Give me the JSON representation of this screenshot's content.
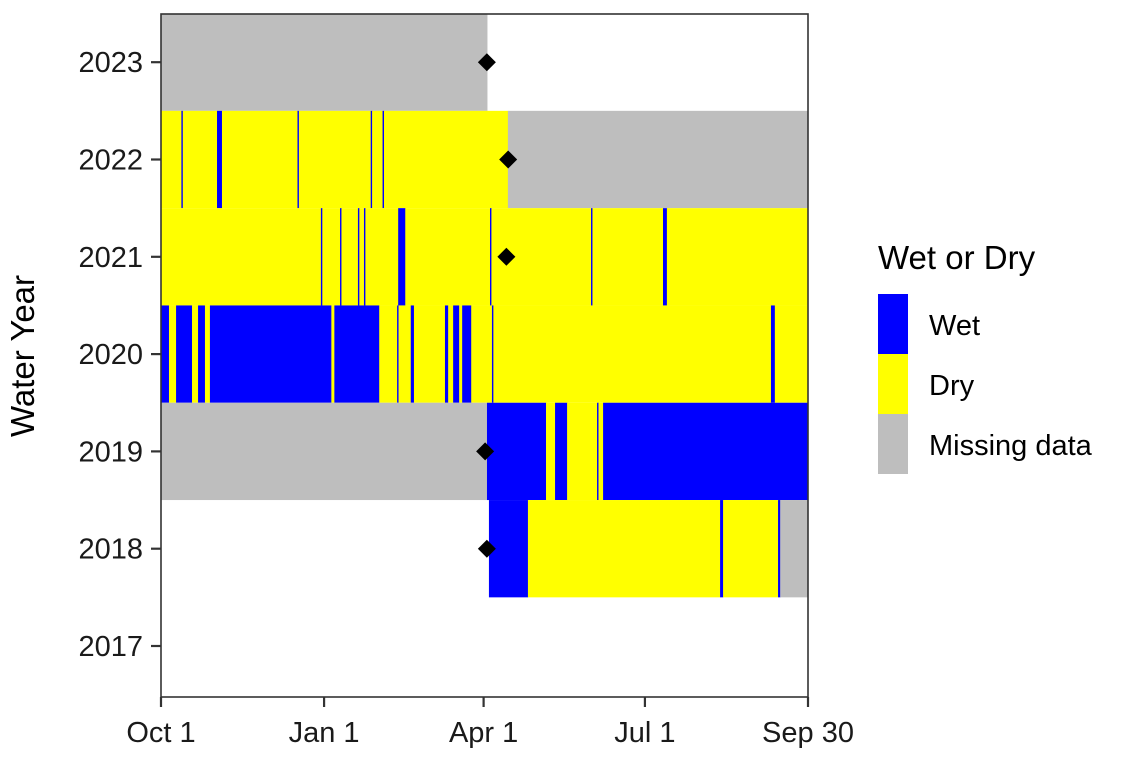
{
  "chart_data": {
    "type": "heatmap",
    "title": "",
    "xlabel": "",
    "ylabel": "Water Year",
    "x_unit": "day of water year (0 = Oct 1, 365 = Sep 30)",
    "xlim": [
      0,
      365
    ],
    "x_ticks": [
      {
        "label": "Oct 1",
        "day": 0
      },
      {
        "label": "Jan 1",
        "day": 92
      },
      {
        "label": "Apr 1",
        "day": 182
      },
      {
        "label": "Jul 1",
        "day": 273
      },
      {
        "label": "Sep 30",
        "day": 365
      }
    ],
    "y_categories": [
      "2017",
      "2018",
      "2019",
      "2020",
      "2021",
      "2022",
      "2023"
    ],
    "grid": false,
    "legend": {
      "title": "Wet or Dry",
      "position": "right",
      "entries": [
        {
          "label": "Wet",
          "color": "#0000FF"
        },
        {
          "label": "Dry",
          "color": "#FFFF00"
        },
        {
          "label": "Missing data",
          "color": "#BEBEBE"
        }
      ]
    },
    "rows": [
      {
        "year": "2023",
        "marker_day": 183,
        "segments": [
          {
            "state": "Missing data",
            "start": 0,
            "end": 184
          }
        ]
      },
      {
        "year": "2022",
        "marker_day": 195,
        "segments": [
          {
            "state": "Dry",
            "start": 0,
            "end": 11.5
          },
          {
            "state": "Wet",
            "start": 11.5,
            "end": 12.3
          },
          {
            "state": "Dry",
            "start": 12.3,
            "end": 31.6
          },
          {
            "state": "Wet",
            "start": 31.6,
            "end": 34.4
          },
          {
            "state": "Dry",
            "start": 34.4,
            "end": 77
          },
          {
            "state": "Wet",
            "start": 77,
            "end": 77.8
          },
          {
            "state": "Dry",
            "start": 77.8,
            "end": 118.3
          },
          {
            "state": "Wet",
            "start": 118.3,
            "end": 119.1
          },
          {
            "state": "Dry",
            "start": 119.1,
            "end": 125
          },
          {
            "state": "Wet",
            "start": 125,
            "end": 125.8
          },
          {
            "state": "Dry",
            "start": 125.8,
            "end": 195.7
          },
          {
            "state": "Missing data",
            "start": 195.7,
            "end": 365
          }
        ]
      },
      {
        "year": "2021",
        "marker_day": 194,
        "segments": [
          {
            "state": "Dry",
            "start": 0,
            "end": 90.2
          },
          {
            "state": "Wet",
            "start": 90.2,
            "end": 91.0
          },
          {
            "state": "Dry",
            "start": 91.0,
            "end": 101.0
          },
          {
            "state": "Wet",
            "start": 101.0,
            "end": 101.8
          },
          {
            "state": "Dry",
            "start": 101.8,
            "end": 111.1
          },
          {
            "state": "Wet",
            "start": 111.1,
            "end": 111.9
          },
          {
            "state": "Dry",
            "start": 111.9,
            "end": 114.5
          },
          {
            "state": "Wet",
            "start": 114.5,
            "end": 115.3
          },
          {
            "state": "Dry",
            "start": 115.3,
            "end": 133.8
          },
          {
            "state": "Wet",
            "start": 133.8,
            "end": 137.8
          },
          {
            "state": "Dry",
            "start": 137.8,
            "end": 185.6
          },
          {
            "state": "Wet",
            "start": 185.6,
            "end": 186.4
          },
          {
            "state": "Dry",
            "start": 186.4,
            "end": 242.6
          },
          {
            "state": "Wet",
            "start": 242.6,
            "end": 243.4
          },
          {
            "state": "Dry",
            "start": 243.4,
            "end": 283.2
          },
          {
            "state": "Wet",
            "start": 283.2,
            "end": 285.4
          },
          {
            "state": "Dry",
            "start": 285.4,
            "end": 365
          }
        ]
      },
      {
        "year": "2020",
        "marker_day": null,
        "segments": [
          {
            "state": "Wet",
            "start": 0,
            "end": 4.5
          },
          {
            "state": "Dry",
            "start": 4.5,
            "end": 8.5
          },
          {
            "state": "Wet",
            "start": 8.5,
            "end": 17.5
          },
          {
            "state": "Dry",
            "start": 17.5,
            "end": 20.9
          },
          {
            "state": "Wet",
            "start": 20.9,
            "end": 24.8
          },
          {
            "state": "Dry",
            "start": 24.8,
            "end": 27.6
          },
          {
            "state": "Wet",
            "start": 27.6,
            "end": 96.1
          },
          {
            "state": "Dry",
            "start": 96.1,
            "end": 97.8
          },
          {
            "state": "Wet",
            "start": 97.8,
            "end": 123.1
          },
          {
            "state": "Dry",
            "start": 123.1,
            "end": 133.2
          },
          {
            "state": "Wet",
            "start": 133.2,
            "end": 134.0
          },
          {
            "state": "Dry",
            "start": 134.0,
            "end": 140.9
          },
          {
            "state": "Wet",
            "start": 140.9,
            "end": 142.7
          },
          {
            "state": "Dry",
            "start": 142.7,
            "end": 160.2
          },
          {
            "state": "Wet",
            "start": 160.2,
            "end": 162.0
          },
          {
            "state": "Dry",
            "start": 162.0,
            "end": 164.8
          },
          {
            "state": "Wet",
            "start": 164.8,
            "end": 168.2
          },
          {
            "state": "Dry",
            "start": 168.2,
            "end": 169.9
          },
          {
            "state": "Wet",
            "start": 169.9,
            "end": 175.0
          },
          {
            "state": "Dry",
            "start": 175.0,
            "end": 186.7
          },
          {
            "state": "Wet",
            "start": 186.7,
            "end": 187.5
          },
          {
            "state": "Dry",
            "start": 187.5,
            "end": 344.1
          },
          {
            "state": "Wet",
            "start": 344.1,
            "end": 346.3
          },
          {
            "state": "Dry",
            "start": 346.3,
            "end": 365
          }
        ]
      },
      {
        "year": "2019",
        "marker_day": 182,
        "segments": [
          {
            "state": "Missing data",
            "start": 0,
            "end": 183.9
          },
          {
            "state": "Wet",
            "start": 183.9,
            "end": 217.2
          },
          {
            "state": "Dry",
            "start": 217.2,
            "end": 222.3
          },
          {
            "state": "Wet",
            "start": 222.3,
            "end": 229.1
          },
          {
            "state": "Dry",
            "start": 229.1,
            "end": 246.0
          },
          {
            "state": "Wet",
            "start": 246.0,
            "end": 246.8
          },
          {
            "state": "Dry",
            "start": 246.8,
            "end": 249.4
          },
          {
            "state": "Wet",
            "start": 249.4,
            "end": 365
          }
        ]
      },
      {
        "year": "2018",
        "marker_day": 183,
        "segments": [
          {
            "state": "Wet",
            "start": 185.0,
            "end": 207.0
          },
          {
            "state": "Dry",
            "start": 207.0,
            "end": 315.4
          },
          {
            "state": "Wet",
            "start": 315.4,
            "end": 317.1
          },
          {
            "state": "Dry",
            "start": 317.1,
            "end": 348.1
          },
          {
            "state": "Wet",
            "start": 348.1,
            "end": 349.3
          },
          {
            "state": "Missing data",
            "start": 349.3,
            "end": 365
          }
        ]
      },
      {
        "year": "2017",
        "marker_day": null,
        "segments": []
      }
    ]
  }
}
